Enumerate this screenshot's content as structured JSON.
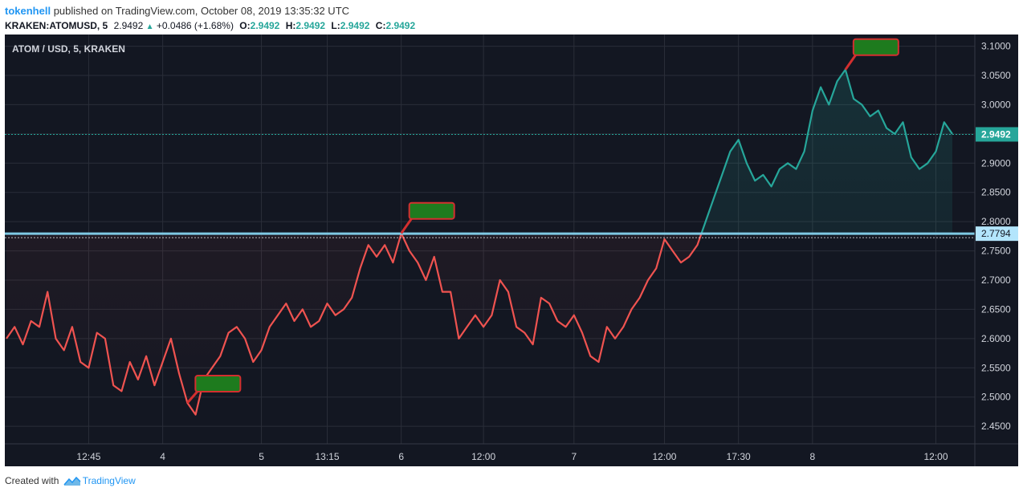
{
  "header": {
    "user": "tokenhell",
    "published_text": "published on TradingView.com, October 08, 2019 13:35:32 UTC",
    "symbol": "KRAKEN:ATOMUSD, 5",
    "last": "2.9492",
    "change": "+0.0486 (+1.68%)",
    "o_label": "O:",
    "o": "2.9492",
    "h_label": "H:",
    "h": "2.9492",
    "l_label": "L:",
    "l": "2.9492",
    "c_label": "C:",
    "c": "2.9492"
  },
  "footer": {
    "created_with": "Created with",
    "brand": "TradingView"
  },
  "chart_data": {
    "type": "line",
    "title": "ATOM / USD, 5, KRAKEN",
    "y_range": [
      2.42,
      3.12
    ],
    "y_ticks": [
      2.45,
      2.5,
      2.55,
      2.6,
      2.65,
      2.7,
      2.75,
      2.8,
      2.85,
      2.9,
      2.95,
      3.0,
      3.05,
      3.1
    ],
    "y_tick_labels": [
      "2.4500",
      "2.5000",
      "2.5500",
      "2.6000",
      "2.6500",
      "2.7000",
      "2.7500",
      "2.8000",
      "2.8500",
      "2.9000",
      "2.9500",
      "3.0000",
      "3.0500",
      "3.1000"
    ],
    "x_tick_labels": [
      {
        "label": "12:45",
        "i": 10
      },
      {
        "label": "4",
        "i": 19
      },
      {
        "label": "5",
        "i": 31
      },
      {
        "label": "13:15",
        "i": 39
      },
      {
        "label": "6",
        "i": 48
      },
      {
        "label": "12:00",
        "i": 58
      },
      {
        "label": "7",
        "i": 69
      },
      {
        "label": "12:00",
        "i": 80
      },
      {
        "label": "17:30",
        "i": 89
      },
      {
        "label": "8",
        "i": 98
      },
      {
        "label": "12:00",
        "i": 113
      }
    ],
    "reference_price": 2.7794,
    "reference_label": "2.7794",
    "last_price": 2.9492,
    "last_label": "2.9492",
    "colors": {
      "below": "#ef5350",
      "above": "#26a69a",
      "reference": "#7ec8e3",
      "marker_fill": "#1e7b1e",
      "marker_border": "#d32f2f"
    },
    "marker_indices": [
      22,
      48,
      102
    ],
    "values": [
      2.6,
      2.62,
      2.59,
      2.63,
      2.62,
      2.68,
      2.6,
      2.58,
      2.62,
      2.56,
      2.55,
      2.61,
      2.6,
      2.52,
      2.51,
      2.56,
      2.53,
      2.57,
      2.52,
      2.56,
      2.6,
      2.54,
      2.49,
      2.47,
      2.53,
      2.55,
      2.57,
      2.61,
      2.62,
      2.6,
      2.56,
      2.58,
      2.62,
      2.64,
      2.66,
      2.63,
      2.65,
      2.62,
      2.63,
      2.66,
      2.64,
      2.65,
      2.67,
      2.72,
      2.76,
      2.74,
      2.76,
      2.73,
      2.78,
      2.75,
      2.73,
      2.7,
      2.74,
      2.68,
      2.68,
      2.6,
      2.62,
      2.64,
      2.62,
      2.64,
      2.7,
      2.68,
      2.62,
      2.61,
      2.59,
      2.67,
      2.66,
      2.63,
      2.62,
      2.64,
      2.61,
      2.57,
      2.56,
      2.62,
      2.6,
      2.62,
      2.65,
      2.67,
      2.7,
      2.72,
      2.77,
      2.75,
      2.73,
      2.74,
      2.76,
      2.8,
      2.84,
      2.88,
      2.92,
      2.94,
      2.9,
      2.87,
      2.88,
      2.86,
      2.89,
      2.9,
      2.89,
      2.92,
      2.99,
      3.03,
      3.0,
      3.04,
      3.06,
      3.01,
      3.0,
      2.98,
      2.99,
      2.96,
      2.95,
      2.97,
      2.91,
      2.89,
      2.9,
      2.92,
      2.97,
      2.95
    ]
  }
}
